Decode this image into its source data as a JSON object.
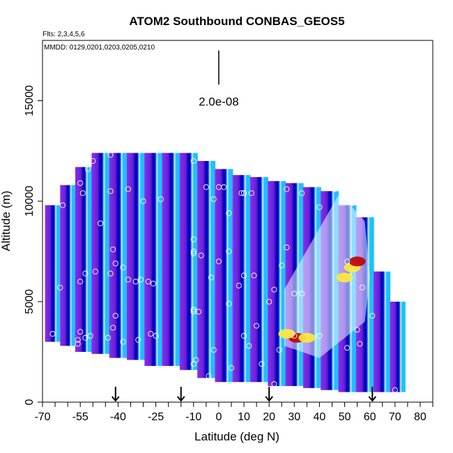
{
  "chart_data": {
    "type": "heatmap",
    "title": "ATOM2 Southbound CONBAS_GEOS5",
    "subtitle_flights": "Flts: 2,3,4,5,6",
    "subtitle_dates": "MMDD: 0129,0201,0203,0205,0210",
    "xlabel": "Latitude (deg N)",
    "ylabel": "Altitude (m)",
    "xlim": [
      -70,
      85
    ],
    "ylim": [
      0,
      18000
    ],
    "x_ticks": [
      -70,
      -55,
      -40,
      -25,
      -10,
      0,
      10,
      20,
      30,
      40,
      50,
      60,
      70,
      80
    ],
    "x_ticks_minor": [
      -65,
      -60,
      -50,
      -45,
      -35,
      -30,
      -20,
      -15,
      -5,
      5,
      15,
      25,
      35,
      45,
      55,
      65,
      75,
      85
    ],
    "y_ticks": [
      0,
      5000,
      10000,
      15000
    ],
    "scale_bar": {
      "label": "2.0e-08",
      "lat": 0,
      "alt_bottom": 15800,
      "alt_top": 17500
    },
    "arrows_lat": [
      -41,
      -15,
      20,
      61
    ],
    "colors": {
      "purple": "#8a2be2",
      "blue": "#0000cd",
      "cyan": "#1fbfff",
      "white": "#ffffff",
      "yellow": "#ffeb3b",
      "red": "#c00000"
    },
    "columns": [
      {
        "lat": -66,
        "bottom": 3000,
        "top": 9800
      },
      {
        "lat": -60,
        "bottom": 2800,
        "top": 10800
      },
      {
        "lat": -54,
        "bottom": 2500,
        "top": 11700
      },
      {
        "lat": -47,
        "bottom": 2400,
        "top": 12400
      },
      {
        "lat": -40,
        "bottom": 2200,
        "top": 12400
      },
      {
        "lat": -33,
        "bottom": 2100,
        "top": 12400
      },
      {
        "lat": -26,
        "bottom": 1800,
        "top": 12400
      },
      {
        "lat": -19,
        "bottom": 1800,
        "top": 12400
      },
      {
        "lat": -12,
        "bottom": 1600,
        "top": 12400
      },
      {
        "lat": -5,
        "bottom": 1200,
        "top": 12000
      },
      {
        "lat": 2,
        "bottom": 1000,
        "top": 11600
      },
      {
        "lat": 9,
        "bottom": 1000,
        "top": 11300
      },
      {
        "lat": 16,
        "bottom": 1000,
        "top": 11200
      },
      {
        "lat": 23,
        "bottom": 800,
        "top": 11000
      },
      {
        "lat": 30,
        "bottom": 800,
        "top": 10900
      },
      {
        "lat": 37,
        "bottom": 700,
        "top": 10700
      },
      {
        "lat": 44,
        "bottom": 600,
        "top": 10500
      },
      {
        "lat": 51,
        "bottom": 500,
        "top": 9800
      },
      {
        "lat": 58,
        "bottom": 500,
        "top": 9200
      },
      {
        "lat": 65,
        "bottom": 500,
        "top": 6500
      },
      {
        "lat": 71,
        "bottom": 500,
        "top": 5000
      }
    ],
    "hotspots": [
      {
        "lat": 31,
        "alt": 3200,
        "color": "red"
      },
      {
        "lat": 27,
        "alt": 3400,
        "color": "yellow"
      },
      {
        "lat": 35,
        "alt": 3200,
        "color": "yellow"
      },
      {
        "lat": 53,
        "alt": 6700,
        "color": "yellow"
      },
      {
        "lat": 55,
        "alt": 7000,
        "color": "red"
      },
      {
        "lat": 50,
        "alt": 6200,
        "color": "yellow"
      }
    ],
    "points": [
      [
        -43,
        12300
      ],
      [
        -50,
        12000
      ],
      [
        -52,
        11600
      ],
      [
        -55,
        10900
      ],
      [
        -54,
        10400
      ],
      [
        -43,
        10500
      ],
      [
        -36,
        10600
      ],
      [
        -30,
        10000
      ],
      [
        -23,
        10100
      ],
      [
        -62,
        9800
      ],
      [
        -47,
        8900
      ],
      [
        -42,
        7600
      ],
      [
        -41,
        6900
      ],
      [
        -38,
        6700
      ],
      [
        -43,
        6400
      ],
      [
        -49,
        6500
      ],
      [
        -53,
        6400
      ],
      [
        -55,
        6000
      ],
      [
        -36,
        6100
      ],
      [
        -33,
        6000
      ],
      [
        -31,
        6100
      ],
      [
        -28,
        6000
      ],
      [
        -26,
        5900
      ],
      [
        -63,
        5700
      ],
      [
        -41,
        4300
      ],
      [
        -42,
        3700
      ],
      [
        -55,
        3500
      ],
      [
        -53,
        3200
      ],
      [
        -56,
        3100
      ],
      [
        -56,
        2900
      ],
      [
        -51,
        3300
      ],
      [
        -44,
        3200
      ],
      [
        -38,
        3000
      ],
      [
        -32,
        3100
      ],
      [
        -27,
        3400
      ],
      [
        -25,
        3300
      ],
      [
        -66,
        3400
      ],
      [
        -10,
        12000
      ],
      [
        -5,
        10700
      ],
      [
        0,
        10700
      ],
      [
        2,
        10700
      ],
      [
        -2,
        10100
      ],
      [
        4,
        9400
      ],
      [
        9,
        10400
      ],
      [
        10,
        10400
      ],
      [
        13,
        10400
      ],
      [
        -10,
        8100
      ],
      [
        -10,
        7500
      ],
      [
        -10,
        7400
      ],
      [
        -7,
        7300
      ],
      [
        4,
        7500
      ],
      [
        0,
        7000
      ],
      [
        10,
        6300
      ],
      [
        14,
        6300
      ],
      [
        -3,
        6200
      ],
      [
        8,
        5800
      ],
      [
        -10,
        4600
      ],
      [
        -10,
        4600
      ],
      [
        -10,
        4500
      ],
      [
        -8,
        4500
      ],
      [
        4,
        4900
      ],
      [
        15,
        3800
      ],
      [
        20,
        5000
      ],
      [
        10,
        3300
      ],
      [
        12,
        2800
      ],
      [
        -2,
        2600
      ],
      [
        -9,
        2100
      ],
      [
        -10,
        1900
      ],
      [
        -4,
        1300
      ],
      [
        5,
        1700
      ],
      [
        17,
        1900
      ],
      [
        22,
        900
      ],
      [
        24,
        2600
      ],
      [
        30,
        3300
      ],
      [
        30,
        5400
      ],
      [
        40,
        3300
      ],
      [
        33,
        5400
      ],
      [
        25,
        6800
      ],
      [
        22,
        5600
      ],
      [
        27,
        7700
      ],
      [
        27,
        10600
      ],
      [
        33,
        10400
      ],
      [
        40,
        9700
      ],
      [
        46,
        10600
      ],
      [
        53,
        9900
      ],
      [
        51,
        7000
      ],
      [
        57,
        5700
      ],
      [
        51,
        2700
      ],
      [
        56,
        2900
      ],
      [
        55,
        3600
      ],
      [
        61,
        4300
      ],
      [
        70,
        600
      ]
    ]
  }
}
